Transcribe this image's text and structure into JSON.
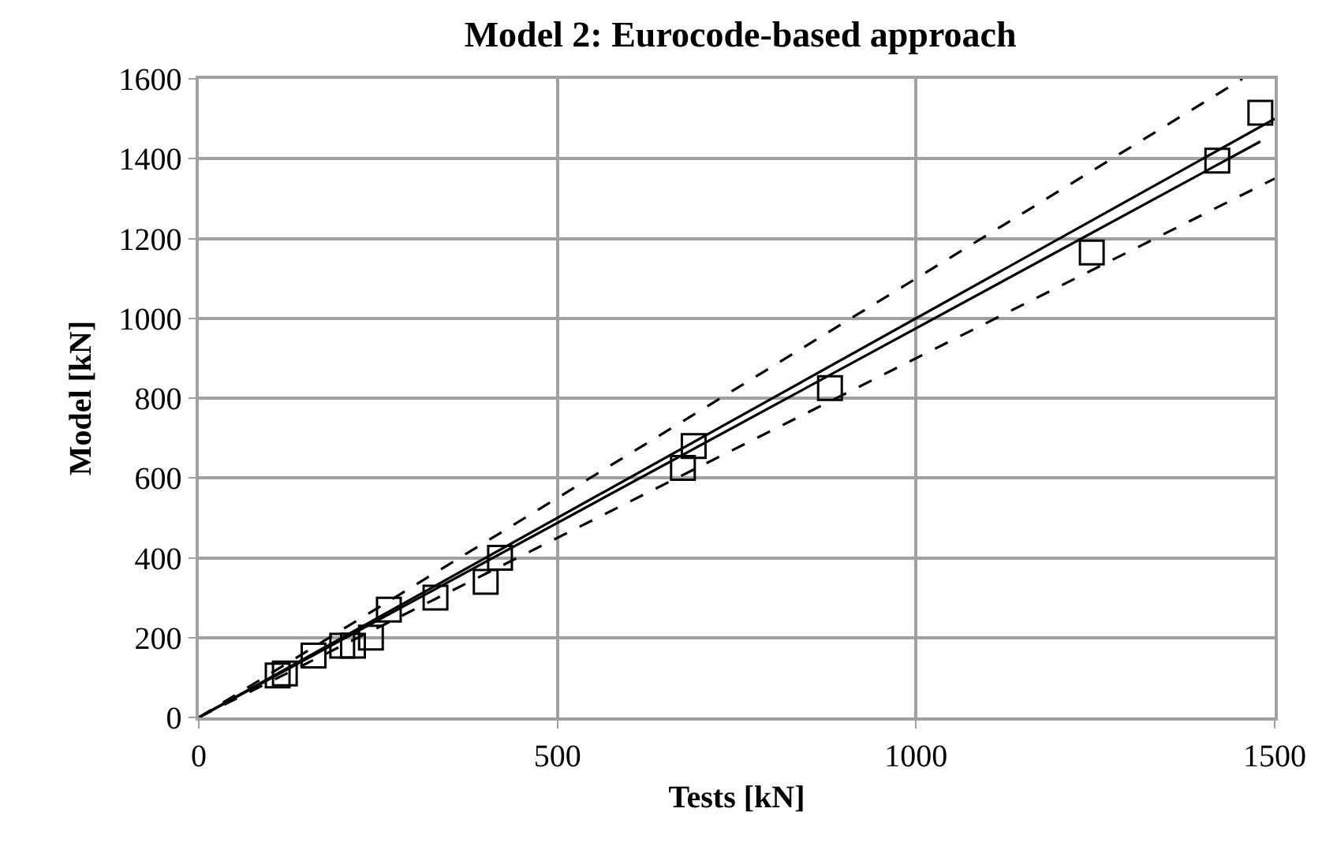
{
  "chart_data": {
    "type": "scatter",
    "title": "Model 2: Eurocode-based approach",
    "xlabel": "Tests [kN]",
    "ylabel": "Model [kN]",
    "x": [
      110,
      120,
      160,
      200,
      215,
      240,
      265,
      330,
      400,
      420,
      675,
      690,
      880,
      1245,
      1420,
      1480
    ],
    "series": [
      {
        "color": "#000000",
        "marker": "square",
        "values": [
          105,
          110,
          155,
          180,
          180,
          200,
          270,
          300,
          340,
          400,
          625,
          680,
          825,
          1165,
          1395,
          1515
        ]
      },
      {
        "type": "line",
        "color": "#000000",
        "line_style": "solid",
        "marker": "none",
        "x": [
          0,
          1500
        ],
        "values": [
          0,
          1500
        ]
      },
      {
        "type": "line",
        "color": "#000000",
        "line_style": "solid",
        "marker": "none",
        "x": [
          0,
          1480
        ],
        "values": [
          0,
          1443
        ]
      },
      {
        "type": "line",
        "color": "#000000",
        "line_style": "dashed",
        "marker": "none",
        "x": [
          0,
          1455
        ],
        "values": [
          0,
          1600
        ]
      },
      {
        "type": "line",
        "color": "#000000",
        "line_style": "dashed",
        "marker": "none",
        "x": [
          0,
          1500
        ],
        "values": [
          0,
          1350
        ]
      }
    ],
    "xlim": [
      0,
      1500
    ],
    "xticks": [
      0,
      500,
      1000,
      1500
    ],
    "ylim": [
      0,
      1600
    ],
    "yticks": [
      0,
      200,
      400,
      600,
      800,
      1000,
      1200,
      1400,
      1600
    ],
    "grid": true,
    "legend": false
  }
}
